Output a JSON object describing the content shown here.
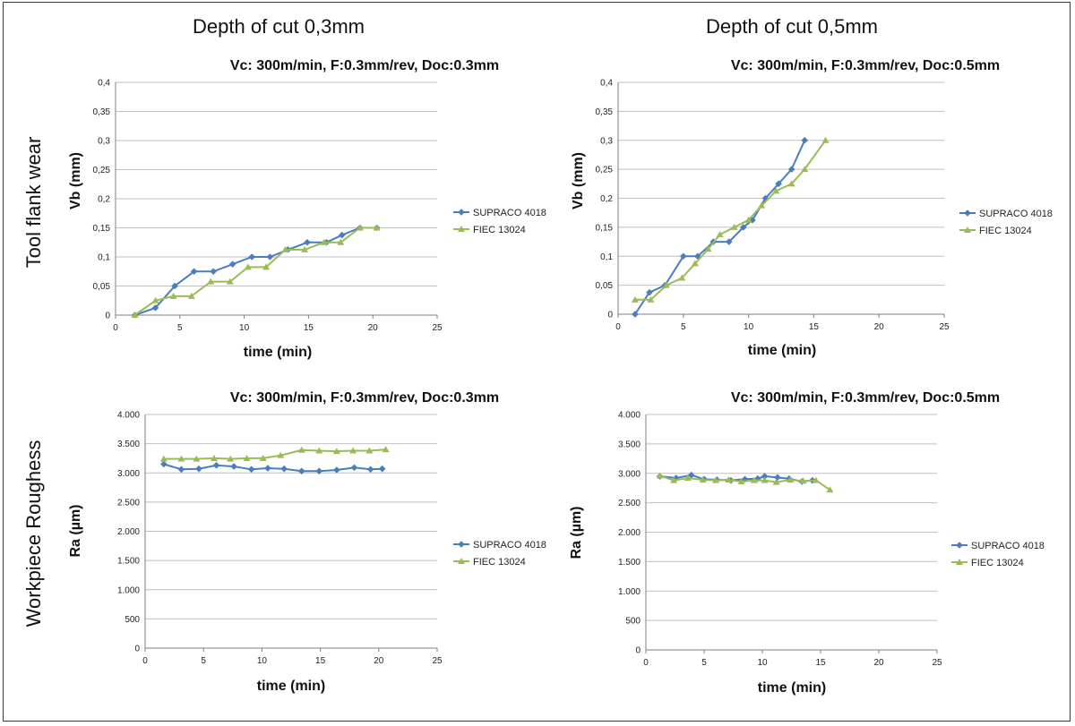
{
  "headings": {
    "col1": "Depth of cut 0,3mm",
    "col2": "Depth of cut 0,5mm",
    "row1": "Tool flank wear",
    "row2": "Workpiece Roughess"
  },
  "colors": {
    "supraco": "#4a7ebb",
    "fiec": "#9bbb59",
    "grid": "#bfbfbf",
    "axis": "#7f7f7f"
  },
  "chart_data": [
    {
      "type": "line",
      "title": "Vc: 300m/min, F:0.3mm/rev, Doc:0.3mm",
      "xlabel": "time (min)",
      "ylabel": "Vb (mm)",
      "xlim": [
        0,
        25
      ],
      "ylim": [
        0,
        0.4
      ],
      "xticks": [
        0,
        5,
        10,
        15,
        20,
        25
      ],
      "yticks": [
        0,
        0.05,
        0.1,
        0.15,
        0.2,
        0.25,
        0.3,
        0.35,
        0.4
      ],
      "xtick_labels": [
        "0",
        "5",
        "10",
        "15",
        "20",
        "25"
      ],
      "ytick_labels": [
        "0",
        "0,05",
        "0,1",
        "0,15",
        "0,2",
        "0,25",
        "0,3",
        "0,35",
        "0,4"
      ],
      "legend_position": "right",
      "series": [
        {
          "name": "SUPRACO 4018",
          "marker": "diamond",
          "x": [
            1.5,
            3.1,
            4.6,
            6.1,
            7.6,
            9.1,
            10.6,
            12.0,
            13.4,
            14.9,
            16.4,
            17.6,
            19.0,
            20.3
          ],
          "y": [
            0,
            0.0125,
            0.05,
            0.075,
            0.075,
            0.0875,
            0.1,
            0.1,
            0.1125,
            0.125,
            0.125,
            0.1375,
            0.15,
            0.15
          ]
        },
        {
          "name": "FIEC 13024",
          "marker": "triangle",
          "x": [
            1.5,
            3.1,
            4.5,
            5.9,
            7.4,
            8.9,
            10.3,
            11.7,
            13.2,
            14.7,
            16.2,
            17.5,
            19.0,
            20.3
          ],
          "y": [
            0,
            0.025,
            0.0325,
            0.0325,
            0.0575,
            0.0575,
            0.0825,
            0.0825,
            0.1125,
            0.1125,
            0.125,
            0.125,
            0.15,
            0.15
          ]
        }
      ]
    },
    {
      "type": "line",
      "title": "Vc: 300m/min, F:0.3mm/rev, Doc:0.5mm",
      "xlabel": "time (min)",
      "ylabel": "Vb (mm)",
      "xlim": [
        0,
        25
      ],
      "ylim": [
        0,
        0.4
      ],
      "xticks": [
        0,
        5,
        10,
        15,
        20,
        25
      ],
      "yticks": [
        0,
        0.05,
        0.1,
        0.15,
        0.2,
        0.25,
        0.3,
        0.35,
        0.4
      ],
      "xtick_labels": [
        "0",
        "5",
        "10",
        "15",
        "20",
        "25"
      ],
      "ytick_labels": [
        "0",
        "0,05",
        "0,1",
        "0,15",
        "0,2",
        "0,25",
        "0,3",
        "0,35",
        "0,4"
      ],
      "legend_position": "right",
      "series": [
        {
          "name": "SUPRACO 4018",
          "marker": "diamond",
          "x": [
            1.3,
            2.4,
            3.6,
            5.0,
            6.1,
            7.3,
            8.5,
            9.6,
            10.3,
            11.3,
            12.3,
            13.3,
            14.3
          ],
          "y": [
            0,
            0.0375,
            0.05,
            0.1,
            0.1,
            0.125,
            0.125,
            0.15,
            0.1625,
            0.2,
            0.225,
            0.25,
            0.3
          ]
        },
        {
          "name": "FIEC 13024",
          "marker": "triangle",
          "x": [
            1.3,
            2.5,
            3.7,
            4.9,
            5.9,
            6.9,
            7.8,
            8.9,
            10.0,
            11.0,
            12.1,
            13.3,
            14.3,
            15.9
          ],
          "y": [
            0.025,
            0.025,
            0.05,
            0.0625,
            0.0875,
            0.1125,
            0.1375,
            0.15,
            0.1625,
            0.1875,
            0.2125,
            0.225,
            0.25,
            0.3
          ]
        }
      ]
    },
    {
      "type": "line",
      "title": "Vc: 300m/min, F:0.3mm/rev, Doc:0.3mm",
      "xlabel": "time (min)",
      "ylabel": "Ra (µm)",
      "xlim": [
        0,
        25
      ],
      "ylim": [
        0,
        4000
      ],
      "xticks": [
        0,
        5,
        10,
        15,
        20,
        25
      ],
      "yticks": [
        0,
        500,
        1000,
        1500,
        2000,
        2500,
        3000,
        3500,
        4000
      ],
      "xtick_labels": [
        "0",
        "5",
        "10",
        "15",
        "20",
        "25"
      ],
      "ytick_labels": [
        "0",
        "500",
        "1.000",
        "1.500",
        "2.000",
        "2.500",
        "3.000",
        "3.500",
        "4.000"
      ],
      "legend_position": "right",
      "series": [
        {
          "name": "SUPRACO 4018",
          "marker": "diamond",
          "x": [
            1.6,
            3.1,
            4.6,
            6.1,
            7.6,
            9.1,
            10.5,
            11.9,
            13.4,
            14.9,
            16.4,
            17.9,
            19.3,
            20.3
          ],
          "y": [
            3150,
            3060,
            3070,
            3130,
            3110,
            3060,
            3080,
            3070,
            3030,
            3030,
            3050,
            3090,
            3060,
            3070
          ]
        },
        {
          "name": "FIEC 13024",
          "marker": "triangle",
          "x": [
            1.6,
            3.1,
            4.4,
            5.9,
            7.3,
            8.7,
            10.1,
            11.6,
            13.4,
            14.9,
            16.4,
            17.8,
            19.2,
            20.6
          ],
          "y": [
            3240,
            3240,
            3240,
            3250,
            3240,
            3250,
            3250,
            3300,
            3390,
            3380,
            3370,
            3380,
            3380,
            3400
          ]
        }
      ]
    },
    {
      "type": "line",
      "title": "Vc: 300m/min, F:0.3mm/rev, Doc:0.5mm",
      "xlabel": "time (min)",
      "ylabel": "Ra (µm)",
      "xlim": [
        0,
        25
      ],
      "ylim": [
        0,
        4000
      ],
      "xticks": [
        0,
        5,
        10,
        15,
        20,
        25
      ],
      "yticks": [
        0,
        500,
        1000,
        1500,
        2000,
        2500,
        3000,
        3500,
        4000
      ],
      "xtick_labels": [
        "0",
        "5",
        "10",
        "15",
        "20",
        "25"
      ],
      "ytick_labels": [
        "0",
        "500",
        "1.000",
        "1.500",
        "2.000",
        "2.500",
        "3.000",
        "3.500",
        "4.000"
      ],
      "legend_position": "right",
      "series": [
        {
          "name": "SUPRACO 4018",
          "marker": "diamond",
          "x": [
            1.2,
            2.6,
            3.9,
            5.0,
            6.1,
            7.3,
            8.5,
            9.6,
            10.2,
            11.3,
            12.3,
            13.4,
            14.3
          ],
          "y": [
            2950,
            2920,
            2970,
            2900,
            2890,
            2880,
            2900,
            2910,
            2950,
            2930,
            2910,
            2860,
            2880
          ]
        },
        {
          "name": "FIEC 13024",
          "marker": "triangle",
          "x": [
            1.2,
            2.4,
            3.6,
            4.9,
            6.0,
            7.1,
            8.2,
            9.3,
            10.2,
            11.2,
            12.4,
            13.5,
            14.6,
            15.8
          ],
          "y": [
            2960,
            2880,
            2920,
            2890,
            2880,
            2890,
            2860,
            2880,
            2880,
            2850,
            2890,
            2870,
            2880,
            2720
          ]
        }
      ]
    }
  ]
}
